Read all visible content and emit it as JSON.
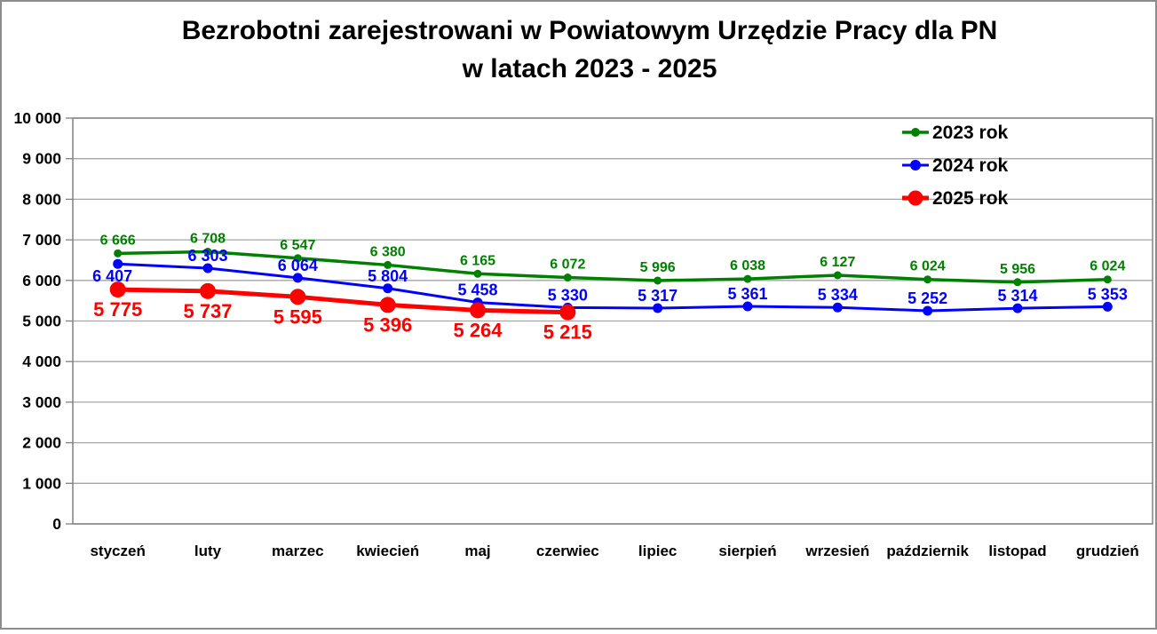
{
  "title": {
    "line1": "Bezrobotni zarejestrowani w Powiatowym Urzędzie Pracy dla PN",
    "line2": "w latach 2023 - 2025"
  },
  "chart_data": {
    "type": "line",
    "categories": [
      "styczeń",
      "luty",
      "marzec",
      "kwiecień",
      "maj",
      "czerwiec",
      "lipiec",
      "sierpień",
      "wrzesień",
      "październik",
      "listopad",
      "grudzień"
    ],
    "series": [
      {
        "name": "2023 rok",
        "color": "#008000",
        "values": [
          6666,
          6708,
          6547,
          6380,
          6165,
          6072,
          5996,
          6038,
          6127,
          6024,
          5956,
          6024
        ]
      },
      {
        "name": "2024 rok",
        "color": "#0000FF",
        "values": [
          6407,
          6303,
          6064,
          5804,
          5458,
          5330,
          5317,
          5361,
          5334,
          5252,
          5314,
          5353
        ]
      },
      {
        "name": "2025 rok",
        "color": "#FF0000",
        "values": [
          5775,
          5737,
          5595,
          5396,
          5264,
          5215
        ]
      }
    ],
    "data_labels": [
      "6 666",
      "6 708",
      "6 547",
      "6 380",
      "6 165",
      "6 072",
      "5 996",
      "6 038",
      "6 127",
      "6 024",
      "5 956",
      "6 024",
      "6 407",
      "6 303",
      "6 064",
      "5 804",
      "5 458",
      "5 330",
      "5 317",
      "5 361",
      "5 334",
      "5 252",
      "5 314",
      "5 353",
      "5 775",
      "5 737",
      "5 595",
      "5 396",
      "5 264",
      "5 215"
    ],
    "xlabel": "",
    "ylabel": "",
    "ylim": [
      0,
      10000
    ],
    "ytick_step": 1000,
    "ytick_labels": [
      "0",
      "1 000",
      "2 000",
      "3 000",
      "4 000",
      "5 000",
      "6 000",
      "7 000",
      "8 000",
      "9 000",
      "10 000"
    ],
    "grid": true,
    "legend_position": "top-right-inside",
    "legend_entries": [
      "2023 rok",
      "2024 rok",
      "2025 rok"
    ]
  },
  "colors": {
    "background": "#FFFFFF",
    "text": "#000000",
    "gridline": "#A6A6A6",
    "plot_border": "#808080",
    "outer_border": "#8C8C8C",
    "series_2023": "#008000",
    "series_2024": "#0000FF",
    "series_2025": "#FF0000"
  }
}
